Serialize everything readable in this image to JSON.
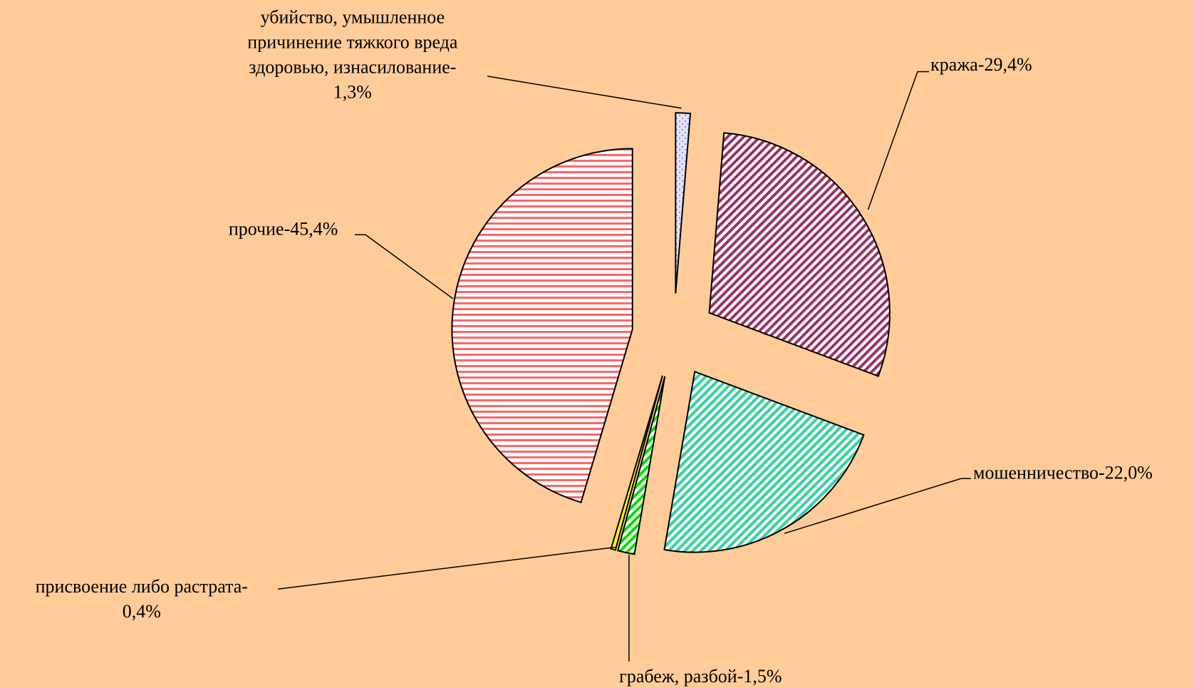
{
  "chart_data": {
    "type": "pie",
    "labels": [
      "убийство, умышленное\nпричинение тяжкого вреда\nздоровью, изнасилование-\n1,3%",
      "кража-29,4%",
      "мошенничество-22,0%",
      "грабеж, разбой-1,5%",
      "присвоение либо растрата-\n0,4%",
      "прочие-45,4%"
    ],
    "values": [
      1.3,
      29.4,
      22.0,
      1.5,
      0.4,
      45.4
    ],
    "colors": [
      "#c8c8ff",
      "#993366",
      "#33cccc",
      "#00e000",
      "#ffff00",
      "#ff6666"
    ]
  }
}
